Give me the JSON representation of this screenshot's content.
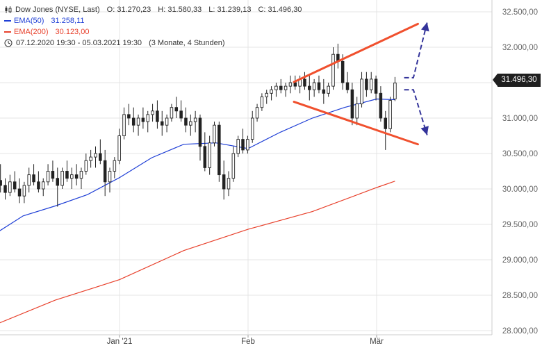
{
  "legend": {
    "instrument": "Dow Jones (NYSE, Last)",
    "open": "O: 31.270,23",
    "high": "H: 31.580,33",
    "low": "L: 31.239,13",
    "close": "C: 31.496,30",
    "ema50_label": "EMA(50)",
    "ema50_value": "31.258,11",
    "ema200_label": "EMA(200)",
    "ema200_value": "30.123,00",
    "period": "07.12.2020 19:30 - 05.03.2021 19:30",
    "interval": "(3 Monate, 4 Stunden)"
  },
  "price_badge": "31.496,30",
  "colors": {
    "ema50": "#1f3fd6",
    "ema200": "#e8412c",
    "trendline": "#f0502e",
    "scenario_arrow": "#33339a",
    "candle": "#222222",
    "grid": "#e4e4e4"
  },
  "chart_data": {
    "type": "candlestick",
    "x_tick_labels": [
      "Jan '21",
      "Feb",
      "Mär"
    ],
    "x_axis": {
      "start": "2020-12-07",
      "end": "2021-03-05"
    },
    "y_tick_labels": [
      "28.000,00",
      "28.500,00",
      "29.000,00",
      "29.500,00",
      "30.000,00",
      "30.500,00",
      "31.000,00",
      "31.500,00",
      "32.000,00",
      "32.500,00"
    ],
    "ylim": [
      27950,
      32650
    ],
    "last_close": 31496.3,
    "ema50": {
      "label": "EMA(50)",
      "x": [
        "2020-12-07",
        "2020-12-14",
        "2020-12-21",
        "2020-12-28",
        "2021-01-04",
        "2021-01-11",
        "2021-01-18",
        "2021-01-25",
        "2021-02-01",
        "2021-02-08",
        "2021-02-15",
        "2021-02-22",
        "2021-03-01",
        "2021-03-05"
      ],
      "y": [
        29330,
        29620,
        29760,
        29920,
        30160,
        30440,
        30630,
        30650,
        30570,
        30800,
        31000,
        31150,
        31270,
        31260
      ]
    },
    "ema200": {
      "label": "EMA(200)",
      "x": [
        "2020-12-07",
        "2020-12-21",
        "2021-01-04",
        "2021-01-18",
        "2021-02-01",
        "2021-02-15",
        "2021-03-01",
        "2021-03-05"
      ],
      "y": [
        28060,
        28430,
        28720,
        29130,
        29430,
        29680,
        30020,
        30110
      ]
    },
    "trendlines": [
      {
        "x": [
          "2021-02-11",
          "2021-03-10"
        ],
        "y": [
          31510,
          32330
        ]
      },
      {
        "x": [
          "2021-02-11",
          "2021-03-10"
        ],
        "y": [
          31230,
          30630
        ]
      }
    ],
    "scenario_arrows": [
      {
        "x": [
          "2021-03-07",
          "2021-03-09",
          "2021-03-12"
        ],
        "y": [
          31570,
          31570,
          32350
        ]
      },
      {
        "x": [
          "2021-03-07",
          "2021-03-09",
          "2021-03-12"
        ],
        "y": [
          31400,
          31400,
          30760
        ]
      }
    ],
    "candles": [
      [
        30150,
        30300,
        29900,
        30000
      ],
      [
        30000,
        30200,
        29850,
        30120
      ],
      [
        30120,
        30350,
        29950,
        30050
      ],
      [
        30050,
        30150,
        29850,
        29950
      ],
      [
        29950,
        30200,
        29900,
        30100
      ],
      [
        30100,
        30250,
        29950,
        30000
      ],
      [
        30000,
        30150,
        29800,
        29900
      ],
      [
        29900,
        30100,
        29800,
        30050
      ],
      [
        30050,
        30300,
        29950,
        30200
      ],
      [
        30200,
        30350,
        30050,
        30100
      ],
      [
        30100,
        30250,
        29950,
        30000
      ],
      [
        30000,
        30150,
        29900,
        30100
      ],
      [
        30100,
        30350,
        30050,
        30250
      ],
      [
        30250,
        30400,
        30100,
        30150
      ],
      [
        30150,
        30300,
        29750,
        30050
      ],
      [
        30050,
        30300,
        30000,
        30250
      ],
      [
        30250,
        30400,
        30100,
        30150
      ],
      [
        30150,
        30300,
        30000,
        30200
      ],
      [
        30200,
        30350,
        30050,
        30150
      ],
      [
        30150,
        30300,
        30000,
        30250
      ],
      [
        30250,
        30500,
        30200,
        30400
      ],
      [
        30400,
        30550,
        30300,
        30450
      ],
      [
        30450,
        30600,
        30300,
        30500
      ],
      [
        30500,
        30700,
        30350,
        30400
      ],
      [
        30400,
        30550,
        29900,
        30100
      ],
      [
        30100,
        30300,
        29950,
        30250
      ],
      [
        30250,
        30450,
        30150,
        30400
      ],
      [
        30400,
        30850,
        30350,
        30750
      ],
      [
        30750,
        31150,
        30700,
        31050
      ],
      [
        31050,
        31200,
        30900,
        31000
      ],
      [
        31000,
        31150,
        30800,
        30900
      ],
      [
        30900,
        31050,
        30750,
        31000
      ],
      [
        31000,
        31150,
        30850,
        30950
      ],
      [
        30950,
        31100,
        30800,
        31050
      ],
      [
        31050,
        31200,
        30950,
        31100
      ],
      [
        31100,
        31250,
        30850,
        30950
      ],
      [
        30950,
        31100,
        30750,
        30900
      ],
      [
        30900,
        31050,
        30800,
        31000
      ],
      [
        31000,
        31200,
        30950,
        31150
      ],
      [
        31150,
        31300,
        31000,
        31100
      ],
      [
        31100,
        31250,
        30950,
        31000
      ],
      [
        31000,
        31150,
        30800,
        30900
      ],
      [
        30900,
        31050,
        30750,
        30950
      ],
      [
        30950,
        31100,
        30800,
        31000
      ],
      [
        31000,
        31050,
        30400,
        30600
      ],
      [
        30600,
        30800,
        30250,
        30300
      ],
      [
        30300,
        30750,
        30200,
        30650
      ],
      [
        30650,
        30950,
        30600,
        30900
      ],
      [
        30900,
        30950,
        30100,
        30200
      ],
      [
        30200,
        30400,
        29850,
        30000
      ],
      [
        30000,
        30250,
        29900,
        30150
      ],
      [
        30150,
        30600,
        30100,
        30500
      ],
      [
        30500,
        30750,
        30450,
        30700
      ],
      [
        30700,
        30850,
        30500,
        30550
      ],
      [
        30550,
        30750,
        30500,
        30700
      ],
      [
        30700,
        31100,
        30650,
        31000
      ],
      [
        31000,
        31200,
        30950,
        31150
      ],
      [
        31150,
        31350,
        31100,
        31300
      ],
      [
        31300,
        31400,
        31200,
        31350
      ],
      [
        31350,
        31450,
        31250,
        31400
      ],
      [
        31400,
        31500,
        31300,
        31450
      ],
      [
        31450,
        31550,
        31350,
        31400
      ],
      [
        31400,
        31500,
        31300,
        31450
      ],
      [
        31450,
        31600,
        31350,
        31500
      ],
      [
        31500,
        31600,
        31400,
        31450
      ],
      [
        31450,
        31600,
        31350,
        31550
      ],
      [
        31550,
        31650,
        31400,
        31450
      ],
      [
        31450,
        31600,
        31250,
        31400
      ],
      [
        31400,
        31550,
        31300,
        31500
      ],
      [
        31500,
        31600,
        31350,
        31400
      ],
      [
        31400,
        31550,
        31200,
        31350
      ],
      [
        31350,
        31500,
        31300,
        31450
      ],
      [
        31450,
        32000,
        31400,
        31900
      ],
      [
        31900,
        32050,
        31700,
        31800
      ],
      [
        31800,
        31900,
        31400,
        31500
      ],
      [
        31500,
        31650,
        31350,
        31400
      ],
      [
        31400,
        31500,
        30900,
        31000
      ],
      [
        31000,
        31300,
        30900,
        31200
      ],
      [
        31200,
        31650,
        31150,
        31550
      ],
      [
        31550,
        31650,
        31300,
        31400
      ],
      [
        31400,
        31650,
        31350,
        31550
      ],
      [
        31550,
        31600,
        31250,
        31350
      ],
      [
        31350,
        31450,
        30950,
        31000
      ],
      [
        31000,
        31100,
        30550,
        30850
      ],
      [
        30850,
        31300,
        30800,
        31250
      ],
      [
        31270,
        31580,
        31240,
        31496
      ]
    ]
  }
}
